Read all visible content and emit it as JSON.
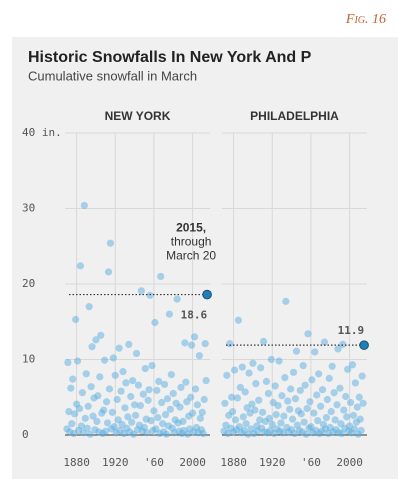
{
  "figure_label": "Fig. 16",
  "chart_data": {
    "type": "scatter",
    "title": "Historic Snowfalls In New York And P",
    "subtitle": "Cumulative snowfall in March",
    "annotation": [
      "2015,",
      "through",
      "March 20"
    ],
    "xlim": [
      1868,
      2018
    ],
    "xticks": [
      1880,
      1920,
      {
        "value": 1960,
        "label": "'60"
      },
      2000
    ],
    "ylim": [
      0,
      40
    ],
    "yticks": [
      0,
      10,
      20,
      30,
      {
        "value": 40,
        "label": "40 in."
      }
    ],
    "grid": true,
    "color": "#5aaee0",
    "highlight_color": "#1f80b8",
    "x": [
      1870,
      1871,
      1872,
      1873,
      1874,
      1875,
      1876,
      1877,
      1878,
      1879,
      1880,
      1881,
      1882,
      1883,
      1884,
      1885,
      1886,
      1887,
      1888,
      1889,
      1890,
      1891,
      1892,
      1893,
      1894,
      1895,
      1896,
      1897,
      1898,
      1899,
      1900,
      1901,
      1902,
      1903,
      1904,
      1905,
      1906,
      1907,
      1908,
      1909,
      1910,
      1911,
      1912,
      1913,
      1914,
      1915,
      1916,
      1917,
      1918,
      1919,
      1920,
      1921,
      1922,
      1923,
      1924,
      1925,
      1926,
      1927,
      1928,
      1929,
      1930,
      1931,
      1932,
      1933,
      1934,
      1935,
      1936,
      1937,
      1938,
      1939,
      1940,
      1941,
      1942,
      1943,
      1944,
      1945,
      1946,
      1947,
      1948,
      1949,
      1950,
      1951,
      1952,
      1953,
      1954,
      1955,
      1956,
      1957,
      1958,
      1959,
      1960,
      1961,
      1962,
      1963,
      1964,
      1965,
      1966,
      1967,
      1968,
      1969,
      1970,
      1971,
      1972,
      1973,
      1974,
      1975,
      1976,
      1977,
      1978,
      1979,
      1980,
      1981,
      1982,
      1983,
      1984,
      1985,
      1986,
      1987,
      1988,
      1989,
      1990,
      1991,
      1992,
      1993,
      1994,
      1995,
      1996,
      1997,
      1998,
      1999,
      2000,
      2001,
      2002,
      2003,
      2004,
      2005,
      2006,
      2007,
      2008,
      2009,
      2010,
      2011,
      2012,
      2013,
      2014,
      2015
    ],
    "series": [
      {
        "name": "NEW YORK",
        "values": [
          0.8,
          9.6,
          3.1,
          0.4,
          6.2,
          1.5,
          7.4,
          0.2,
          2.8,
          15.3,
          4.1,
          9.8,
          0.6,
          3.5,
          22.4,
          1.2,
          5.6,
          0.3,
          30.4,
          2.2,
          8.1,
          0.9,
          3.8,
          17.0,
          0.1,
          6.4,
          11.7,
          2.5,
          4.9,
          0.7,
          12.6,
          1.8,
          5.2,
          0.4,
          7.7,
          13.2,
          2.9,
          0.2,
          3.3,
          9.9,
          0.5,
          4.4,
          1.6,
          21.6,
          6.1,
          25.4,
          0.8,
          3.0,
          10.2,
          1.1,
          7.9,
          0.3,
          4.7,
          2.0,
          11.5,
          0.6,
          5.8,
          1.4,
          8.4,
          0.2,
          3.6,
          6.9,
          0.9,
          2.4,
          12.0,
          0.4,
          5.1,
          1.7,
          7.2,
          0.1,
          4.0,
          2.6,
          10.8,
          0.7,
          6.6,
          1.3,
          3.9,
          19.1,
          0.5,
          5.4,
          1.0,
          8.8,
          2.1,
          0.3,
          4.6,
          6.0,
          18.5,
          1.9,
          9.2,
          0.6,
          3.2,
          14.9,
          0.8,
          5.9,
          2.3,
          7.1,
          0.2,
          21.0,
          4.3,
          1.5,
          0.4,
          6.7,
          2.7,
          0.1,
          4.8,
          1.2,
          16.0,
          3.4,
          8.0,
          0.9,
          5.5,
          0.3,
          2.0,
          4.2,
          18.0,
          1.6,
          0.5,
          3.7,
          6.3,
          0.2,
          1.8,
          0.6,
          12.2,
          7.0,
          4.4,
          0.1,
          2.5,
          0.8,
          5.0,
          11.9,
          2.9,
          0.4,
          13.0,
          6.1,
          1.0,
          4.0,
          0.3,
          10.5,
          2.2,
          0.7,
          3.0,
          0.2,
          4.7,
          12.1,
          7.2,
          18.6
        ]
      },
      {
        "name": "PHILADELPHIA",
        "values": [
          0.5,
          4.2,
          1.3,
          7.9,
          0.2,
          2.6,
          12.1,
          0.9,
          5.0,
          3.1,
          0.4,
          8.6,
          2.0,
          0.7,
          4.9,
          15.2,
          1.1,
          6.3,
          0.3,
          9.0,
          2.4,
          0.6,
          5.7,
          1.5,
          3.6,
          0.1,
          8.2,
          2.9,
          0.8,
          4.1,
          9.5,
          0.2,
          3.3,
          6.8,
          1.2,
          0.5,
          4.6,
          2.0,
          8.9,
          0.9,
          3.0,
          12.4,
          0.4,
          1.8,
          7.1,
          0.3,
          5.5,
          2.2,
          0.6,
          10.0,
          1.4,
          4.3,
          0.2,
          6.5,
          2.7,
          0.8,
          3.9,
          9.8,
          0.5,
          1.6,
          5.2,
          0.3,
          2.5,
          7.6,
          17.7,
          1.0,
          4.5,
          0.4,
          3.4,
          6.1,
          0.7,
          2.1,
          8.3,
          0.2,
          4.8,
          11.1,
          1.3,
          3.2,
          0.6,
          5.9,
          2.8,
          0.4,
          9.2,
          1.7,
          6.6,
          0.1,
          3.5,
          13.4,
          0.9,
          4.4,
          1.1,
          7.3,
          0.3,
          2.9,
          11.0,
          0.6,
          5.3,
          1.9,
          8.1,
          0.2,
          3.8,
          0.5,
          6.0,
          1.4,
          12.3,
          0.8,
          2.3,
          4.7,
          0.2,
          7.5,
          1.0,
          3.1,
          9.1,
          0.4,
          5.6,
          2.0,
          0.7,
          4.0,
          11.4,
          0.3,
          6.2,
          1.5,
          0.2,
          12.0,
          3.3,
          0.9,
          5.1,
          2.4,
          8.7,
          0.5,
          1.2,
          4.3,
          0.3,
          9.3,
          2.6,
          0.8,
          6.9,
          1.7,
          3.7,
          0.1,
          5.0,
          2.1,
          0.6,
          7.8,
          4.2,
          11.9
        ]
      }
    ]
  }
}
